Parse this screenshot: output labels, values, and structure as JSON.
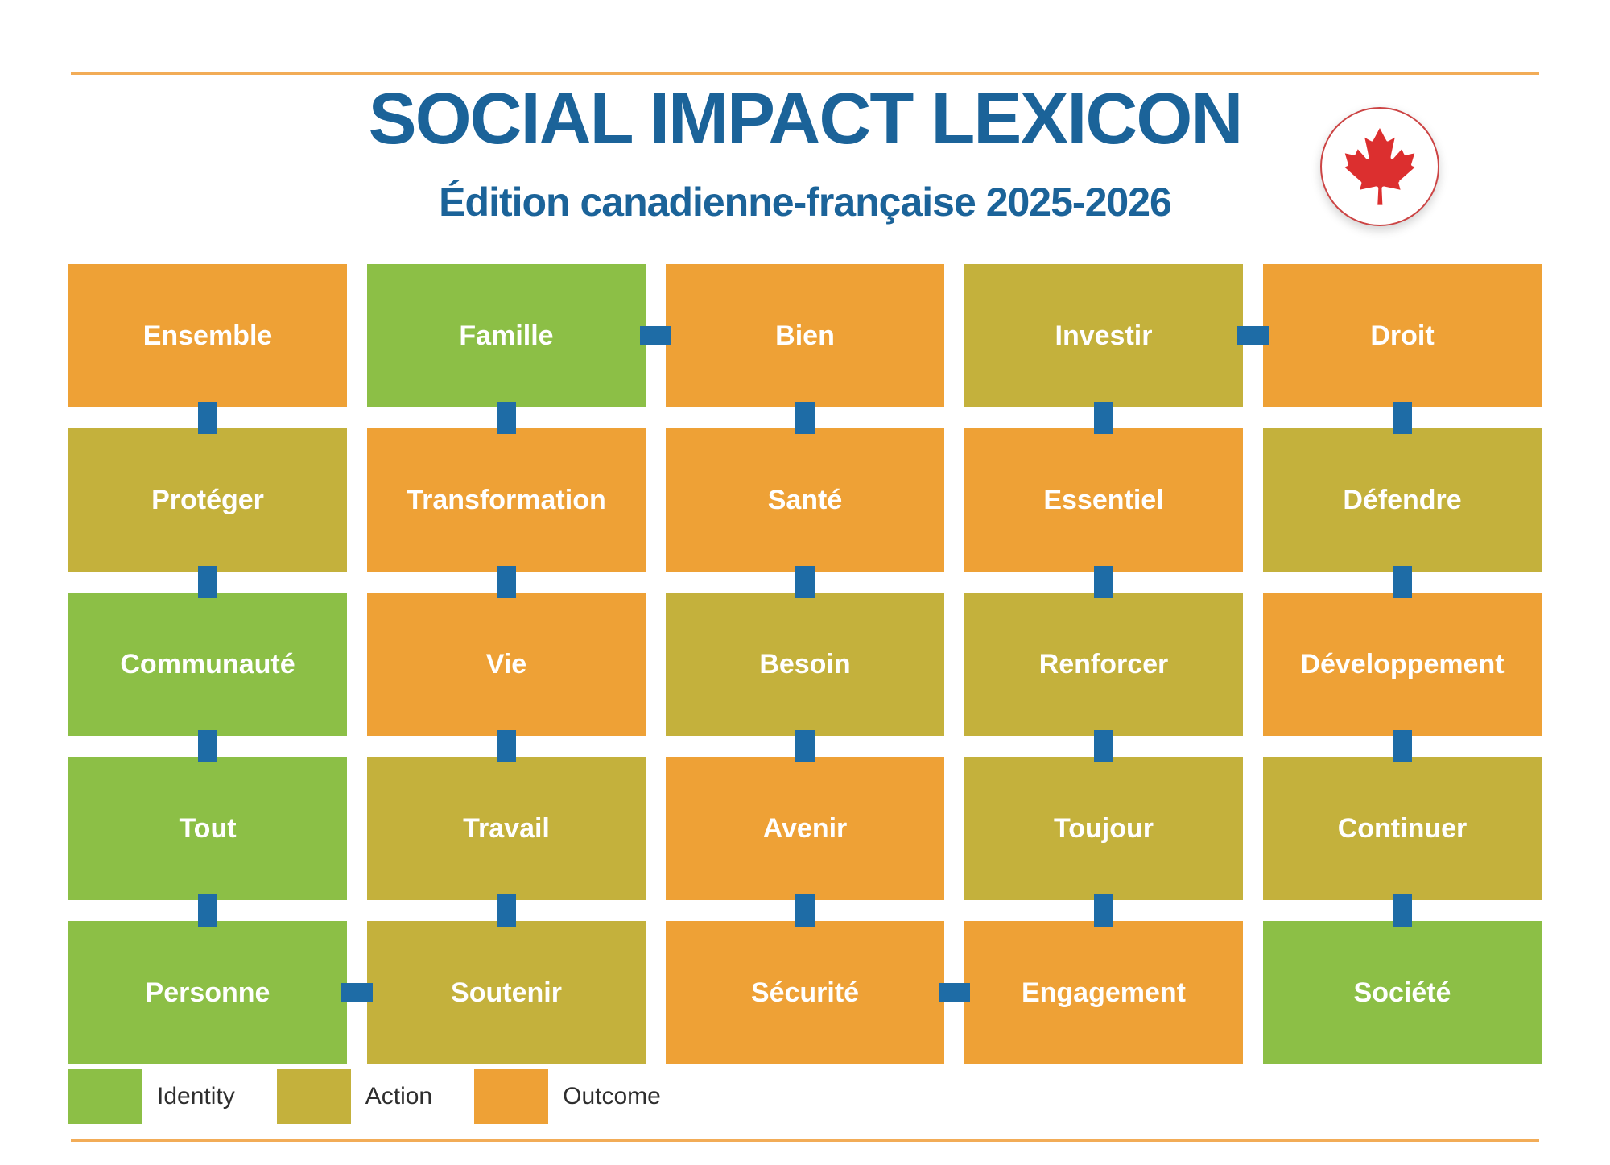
{
  "header": {
    "title": "SOCIAL IMPACT LEXICON",
    "subtitle": "Édition canadienne-française 2025-2026",
    "logo": "canada-maple-leaf"
  },
  "colors": {
    "identity": "#8CBF46",
    "action": "#C4B13C",
    "outcome": "#EEA136",
    "connector": "#1E6CA6",
    "title": "#1B6399",
    "rule": "#F2AC57",
    "leaf": "#DC2F2F",
    "tile_text": "#FFFFFF",
    "legend_text": "#2E2E2E"
  },
  "grid": {
    "rows": 5,
    "cols": 5,
    "tiles": [
      [
        {
          "label": "Ensemble",
          "type": "outcome"
        },
        {
          "label": "Famille",
          "type": "identity"
        },
        {
          "label": "Bien",
          "type": "outcome"
        },
        {
          "label": "Investir",
          "type": "action"
        },
        {
          "label": "Droit",
          "type": "outcome"
        }
      ],
      [
        {
          "label": "Protéger",
          "type": "action"
        },
        {
          "label": "Transformation",
          "type": "outcome"
        },
        {
          "label": "Santé",
          "type": "outcome"
        },
        {
          "label": "Essentiel",
          "type": "outcome"
        },
        {
          "label": "Défendre",
          "type": "action"
        }
      ],
      [
        {
          "label": "Communauté",
          "type": "identity"
        },
        {
          "label": "Vie",
          "type": "outcome"
        },
        {
          "label": "Besoin",
          "type": "action"
        },
        {
          "label": "Renforcer",
          "type": "action"
        },
        {
          "label": "Développement",
          "type": "outcome"
        }
      ],
      [
        {
          "label": "Tout",
          "type": "identity"
        },
        {
          "label": "Travail",
          "type": "action"
        },
        {
          "label": "Avenir",
          "type": "outcome"
        },
        {
          "label": "Toujour",
          "type": "action"
        },
        {
          "label": "Continuer",
          "type": "action"
        }
      ],
      [
        {
          "label": "Personne",
          "type": "identity"
        },
        {
          "label": "Soutenir",
          "type": "action"
        },
        {
          "label": "Sécurité",
          "type": "outcome"
        },
        {
          "label": "Engagement",
          "type": "outcome"
        },
        {
          "label": "Société",
          "type": "identity"
        }
      ]
    ],
    "connectors": {
      "vertical": [
        [
          0,
          0
        ],
        [
          0,
          1
        ],
        [
          0,
          2
        ],
        [
          0,
          3
        ],
        [
          0,
          4
        ],
        [
          1,
          0
        ],
        [
          1,
          1
        ],
        [
          1,
          2
        ],
        [
          1,
          3
        ],
        [
          1,
          4
        ],
        [
          2,
          0
        ],
        [
          2,
          1
        ],
        [
          2,
          2
        ],
        [
          2,
          3
        ],
        [
          2,
          4
        ],
        [
          3,
          0
        ],
        [
          3,
          1
        ],
        [
          3,
          2
        ],
        [
          3,
          3
        ],
        [
          3,
          4
        ]
      ],
      "horizontal": [
        [
          0,
          1
        ],
        [
          0,
          3
        ],
        [
          4,
          0
        ],
        [
          4,
          2
        ]
      ]
    }
  },
  "legend": {
    "items": [
      {
        "label": "Identity",
        "type": "identity"
      },
      {
        "label": "Action",
        "type": "action"
      },
      {
        "label": "Outcome",
        "type": "outcome"
      }
    ]
  }
}
